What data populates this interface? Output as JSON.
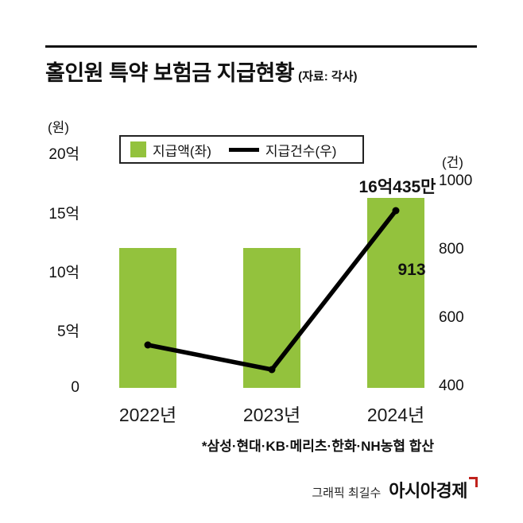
{
  "page": {
    "title": "홀인원 특약 보험금 지급현황",
    "source_note": "(자료: 각사)",
    "footnote": "*삼성·현대·KB·메리츠·한화·NH농협 합산",
    "credit": "그래픽 최길수",
    "brand": "아시아경제"
  },
  "chart_data": {
    "type": "bar+line",
    "title": "홀인원 특약 보험금 지급현황",
    "categories": [
      "2022년",
      "2023년",
      "2024년"
    ],
    "series": [
      {
        "name": "지급액(좌)",
        "type": "bar",
        "axis": "left",
        "unit": "억원",
        "values": [
          11.8,
          11.8,
          16.0435
        ]
      },
      {
        "name": "지급건수(우)",
        "type": "line",
        "axis": "right",
        "unit": "건",
        "values": [
          520,
          450,
          913
        ]
      }
    ],
    "left_axis": {
      "unit_label": "(원)",
      "min": 0,
      "max": 20,
      "ticks": [
        "20억",
        "15억",
        "10억",
        "5억",
        "0"
      ]
    },
    "right_axis": {
      "unit_label": "(건)",
      "min": 400,
      "max": 1000,
      "ticks": [
        "1000",
        "800",
        "600",
        "400"
      ]
    },
    "annotations": [
      {
        "text": "16억435만",
        "series": "지급액(좌)",
        "category": "2024년"
      },
      {
        "text": "913",
        "series": "지급건수(우)",
        "category": "2024년"
      }
    ],
    "colors": {
      "bar": "#93c23d",
      "line": "#000000"
    },
    "legend_position": "top-left",
    "grid": false
  }
}
